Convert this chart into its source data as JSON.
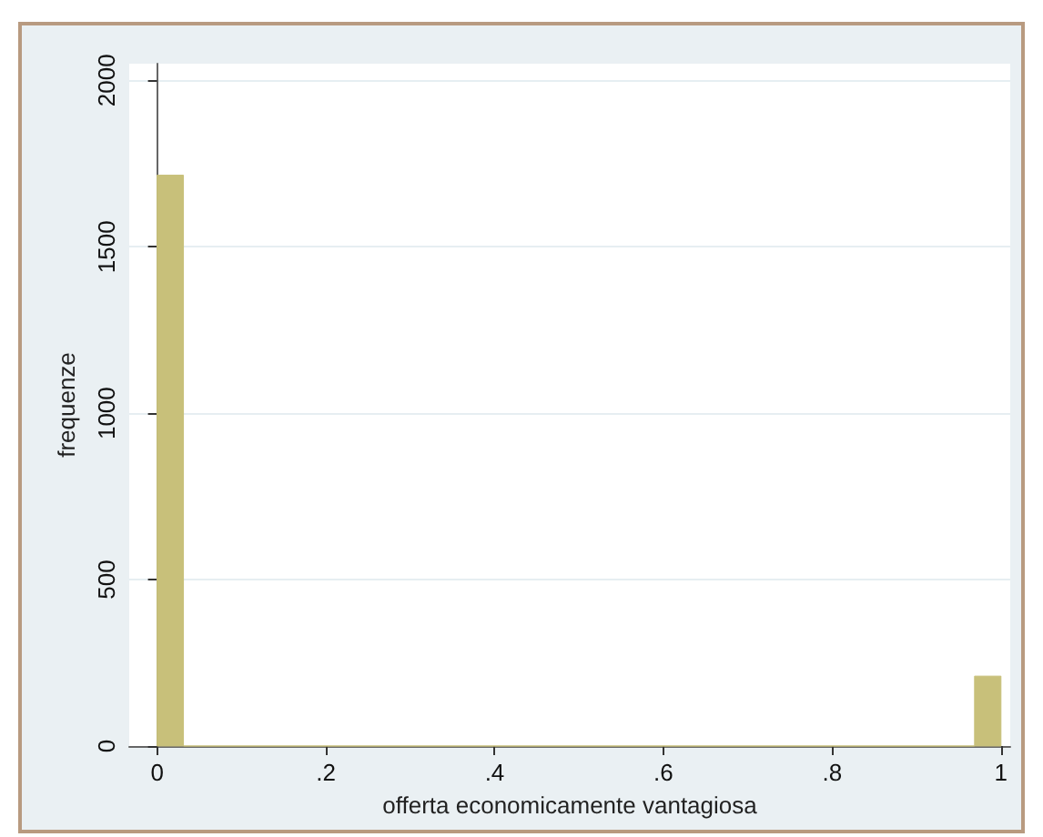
{
  "chart_data": {
    "type": "histogram",
    "xlabel": "offerta economicamente vantagiosa",
    "ylabel": "frequenze",
    "bins": [
      0,
      0.03125,
      0.96875,
      1
    ],
    "values": [
      1715,
      0,
      210
    ],
    "color": "#c8c07a",
    "xlim": [
      -0.033,
      1.011
    ],
    "xticks": [
      0,
      {
        "value": 0.2,
        "label": ".2"
      },
      {
        "value": 0.4,
        "label": ".4"
      },
      {
        "value": 0.6,
        "label": ".6"
      },
      {
        "value": 0.8,
        "label": ".8"
      },
      1
    ],
    "ylim": [
      0,
      2050
    ],
    "yticks": [
      0,
      500,
      1000,
      1500,
      2000
    ],
    "grid": "y"
  }
}
